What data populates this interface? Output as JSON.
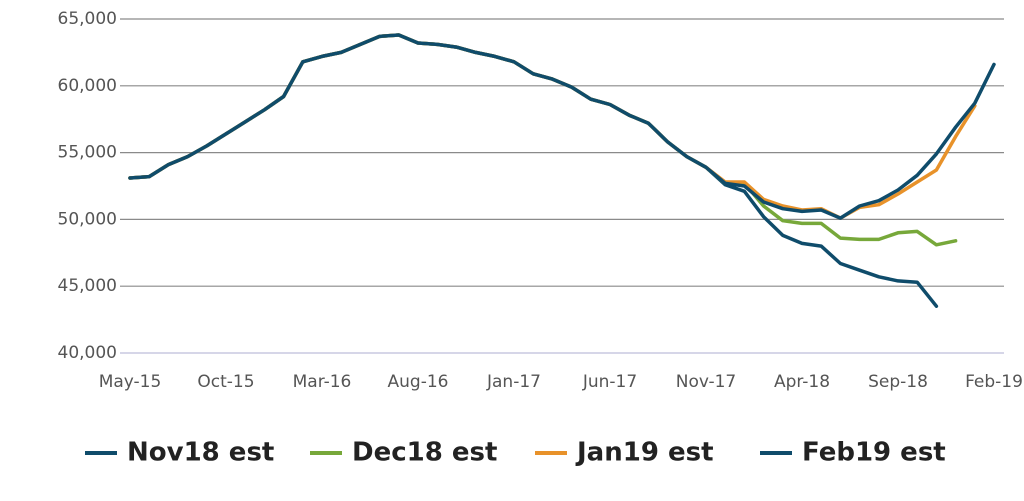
{
  "chart_data": {
    "type": "line",
    "categories": [
      "May-15",
      null,
      null,
      null,
      null,
      "Oct-15",
      null,
      null,
      null,
      null,
      "Mar-16",
      null,
      null,
      null,
      null,
      "Aug-16",
      null,
      null,
      null,
      null,
      "Jan-17",
      null,
      null,
      null,
      null,
      "Jun-17",
      null,
      null,
      null,
      null,
      "Nov-17",
      null,
      null,
      null,
      null,
      "Apr-18",
      null,
      null,
      null,
      null,
      "Sep-18",
      null,
      null,
      null,
      null,
      "Feb-19"
    ],
    "series": [
      {
        "name": "Nov18 est",
        "color": "#0f4c6b",
        "values": [
          53100,
          53200,
          54100,
          54700,
          55500,
          56400,
          57300,
          58200,
          59200,
          61800,
          62200,
          62500,
          63100,
          63700,
          63800,
          63200,
          63100,
          62900,
          62500,
          62200,
          61800,
          60900,
          60500,
          59900,
          59000,
          58600,
          57800,
          57200,
          55800,
          54700,
          53900,
          52600,
          52100,
          50200,
          48800,
          48200,
          48000,
          46700,
          46200,
          45700,
          45400,
          45300,
          43500,
          null,
          null,
          null
        ]
      },
      {
        "name": "Dec18 est",
        "color": "#77a83a",
        "values": [
          53100,
          53200,
          54100,
          54700,
          55500,
          56400,
          57300,
          58200,
          59200,
          61800,
          62200,
          62500,
          63100,
          63700,
          63800,
          63200,
          63100,
          62900,
          62500,
          62200,
          61800,
          60900,
          60500,
          59900,
          59000,
          58600,
          57800,
          57200,
          55800,
          54700,
          53900,
          52700,
          52700,
          51000,
          49900,
          49700,
          49700,
          48600,
          48500,
          48500,
          49000,
          49100,
          48100,
          48400,
          null,
          null
        ]
      },
      {
        "name": "Jan19 est",
        "color": "#e8922a",
        "values": [
          53100,
          53200,
          54100,
          54700,
          55500,
          56400,
          57300,
          58200,
          59200,
          61800,
          62200,
          62500,
          63100,
          63700,
          63800,
          63200,
          63100,
          62900,
          62500,
          62200,
          61800,
          60900,
          60500,
          59900,
          59000,
          58600,
          57800,
          57200,
          55800,
          54700,
          53900,
          52800,
          52800,
          51500,
          51000,
          50700,
          50800,
          50100,
          50900,
          51100,
          51900,
          52800,
          53700,
          56200,
          58500,
          null
        ]
      },
      {
        "name": "Feb19 est",
        "color": "#0f4c6b",
        "values": [
          53100,
          53200,
          54100,
          54700,
          55500,
          56400,
          57300,
          58200,
          59200,
          61800,
          62200,
          62500,
          63100,
          63700,
          63800,
          63200,
          63100,
          62900,
          62500,
          62200,
          61800,
          60900,
          60500,
          59900,
          59000,
          58600,
          57800,
          57200,
          55800,
          54700,
          53900,
          52700,
          52500,
          51300,
          50800,
          50600,
          50700,
          50100,
          51000,
          51400,
          52200,
          53300,
          54900,
          56900,
          58700,
          61600
        ]
      }
    ],
    "ylim": [
      40000,
      65000
    ],
    "yticks": [
      {
        "value": 40000,
        "label": "40,000"
      },
      {
        "value": 45000,
        "label": "45,000"
      },
      {
        "value": 50000,
        "label": "50,000"
      },
      {
        "value": 55000,
        "label": "55,000"
      },
      {
        "value": 60000,
        "label": "60,000"
      },
      {
        "value": 65000,
        "label": "65,000"
      }
    ],
    "grid": true
  }
}
